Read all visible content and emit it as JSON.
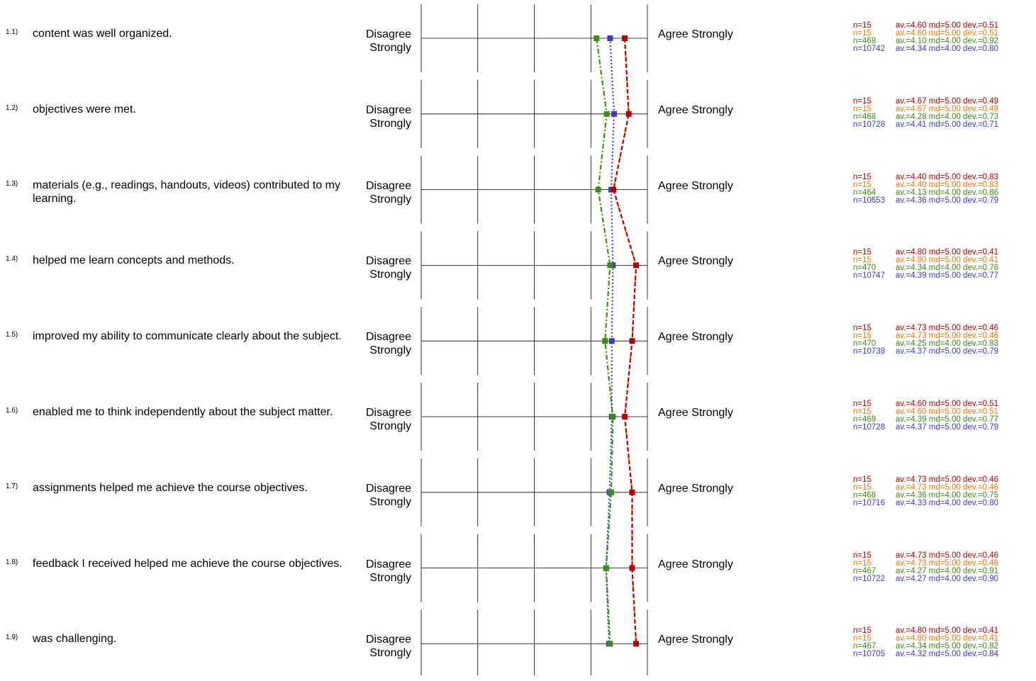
{
  "scale": {
    "left_label": "Disagree\nStrongly",
    "right_label": "Agree Strongly",
    "min": 1,
    "max": 5
  },
  "colors": {
    "red": "#b40000",
    "orange": "#f07800",
    "green": "#3c8c14",
    "blue": "#3c3cc8",
    "grid": "#000000"
  },
  "items": [
    {
      "num": "1.1)",
      "text": "content was well organized.",
      "stats": [
        [
          "n=15",
          "av.=4.60",
          "md=5.00",
          "dev.=0.51"
        ],
        [
          "n=15",
          "av.=4.60",
          "md=5.00",
          "dev.=0.51"
        ],
        [
          "n=469",
          "av.=4.10",
          "md=4.00",
          "dev.=0.92"
        ],
        [
          "n=10742",
          "av.=4.34",
          "md=4.00",
          "dev.=0.80"
        ]
      ]
    },
    {
      "num": "1.2)",
      "text": "objectives were met.",
      "stats": [
        [
          "n=15",
          "av.=4.67",
          "md=5.00",
          "dev.=0.49"
        ],
        [
          "n=15",
          "av.=4.67",
          "md=5.00",
          "dev.=0.49"
        ],
        [
          "n=468",
          "av.=4.28",
          "md=4.00",
          "dev.=0.73"
        ],
        [
          "n=10728",
          "av.=4.41",
          "md=5.00",
          "dev.=0.71"
        ]
      ]
    },
    {
      "num": "1.3)",
      "text": "materials (e.g., readings, handouts, videos) contributed to my learning.",
      "stats": [
        [
          "n=15",
          "av.=4.40",
          "md=5.00",
          "dev.=0.83"
        ],
        [
          "n=15",
          "av.=4.40",
          "md=5.00",
          "dev.=0.83"
        ],
        [
          "n=464",
          "av.=4.13",
          "md=4.00",
          "dev.=0.86"
        ],
        [
          "n=10653",
          "av.=4.36",
          "md=5.00",
          "dev.=0.79"
        ]
      ]
    },
    {
      "num": "1.4)",
      "text": "helped me learn concepts and methods.",
      "stats": [
        [
          "n=15",
          "av.=4.80",
          "md=5.00",
          "dev.=0.41"
        ],
        [
          "n=15",
          "av.=4.80",
          "md=5.00",
          "dev.=0.41"
        ],
        [
          "n=470",
          "av.=4.34",
          "md=4.00",
          "dev.=0.76"
        ],
        [
          "n=10747",
          "av.=4.39",
          "md=5.00",
          "dev.=0.77"
        ]
      ]
    },
    {
      "num": "1.5)",
      "text": "improved my ability to communicate clearly about the subject.",
      "stats": [
        [
          "n=15",
          "av.=4.73",
          "md=5.00",
          "dev.=0.46"
        ],
        [
          "n=15",
          "av.=4.73",
          "md=5.00",
          "dev.=0.46"
        ],
        [
          "n=470",
          "av.=4.25",
          "md=4.00",
          "dev.=0.83"
        ],
        [
          "n=10738",
          "av.=4.37",
          "md=5.00",
          "dev.=0.79"
        ]
      ]
    },
    {
      "num": "1.6)",
      "text": "enabled me to think independently about the subject matter.",
      "stats": [
        [
          "n=15",
          "av.=4.60",
          "md=5.00",
          "dev.=0.51"
        ],
        [
          "n=15",
          "av.=4.60",
          "md=5.00",
          "dev.=0.51"
        ],
        [
          "n=469",
          "av.=4.39",
          "md=5.00",
          "dev.=0.77"
        ],
        [
          "n=10728",
          "av.=4.37",
          "md=5.00",
          "dev.=0.79"
        ]
      ]
    },
    {
      "num": "1.7)",
      "text": "assignments helped me achieve the course objectives.",
      "stats": [
        [
          "n=15",
          "av.=4.73",
          "md=5.00",
          "dev.=0.46"
        ],
        [
          "n=15",
          "av.=4.73",
          "md=5.00",
          "dev.=0.46"
        ],
        [
          "n=468",
          "av.=4.36",
          "md=4.00",
          "dev.=0.75"
        ],
        [
          "n=10716",
          "av.=4.33",
          "md=4.00",
          "dev.=0.80"
        ]
      ]
    },
    {
      "num": "1.8)",
      "text": "feedback I received helped me achieve the course objectives.",
      "stats": [
        [
          "n=15",
          "av.=4.73",
          "md=5.00",
          "dev.=0.46"
        ],
        [
          "n=15",
          "av.=4.73",
          "md=5.00",
          "dev.=0.46"
        ],
        [
          "n=467",
          "av.=4.27",
          "md=4.00",
          "dev.=0.91"
        ],
        [
          "n=10722",
          "av.=4.27",
          "md=4.00",
          "dev.=0.90"
        ]
      ]
    },
    {
      "num": "1.9)",
      "text": "was challenging.",
      "stats": [
        [
          "n=15",
          "av.=4.80",
          "md=5.00",
          "dev.=0.41"
        ],
        [
          "n=15",
          "av.=4.80",
          "md=5.00",
          "dev.=0.41"
        ],
        [
          "n=467",
          "av.=4.34",
          "md=5.00",
          "dev.=0.82"
        ],
        [
          "n=10705",
          "av.=4.32",
          "md=5.00",
          "dev.=0.84"
        ]
      ]
    }
  ],
  "chart_data": {
    "type": "line",
    "categories": [
      "1.1)",
      "1.2)",
      "1.3)",
      "1.4)",
      "1.5)",
      "1.6)",
      "1.7)",
      "1.8)",
      "1.9)"
    ],
    "xlim": [
      1,
      5
    ],
    "series": [
      {
        "color": "#b40000",
        "style": "dashed",
        "values": [
          4.6,
          4.67,
          4.4,
          4.8,
          4.73,
          4.6,
          4.73,
          4.73,
          4.8
        ]
      },
      {
        "color": "#f07800",
        "style": "dashed",
        "values": [
          4.6,
          4.67,
          4.4,
          4.8,
          4.73,
          4.6,
          4.73,
          4.73,
          4.8
        ]
      },
      {
        "color": "#3c8c14",
        "style": "dashdot",
        "values": [
          4.1,
          4.28,
          4.13,
          4.34,
          4.25,
          4.39,
          4.36,
          4.27,
          4.34
        ]
      },
      {
        "color": "#3c3cc8",
        "style": "dotted",
        "values": [
          4.34,
          4.41,
          4.36,
          4.39,
          4.37,
          4.37,
          4.33,
          4.27,
          4.32
        ]
      }
    ]
  }
}
